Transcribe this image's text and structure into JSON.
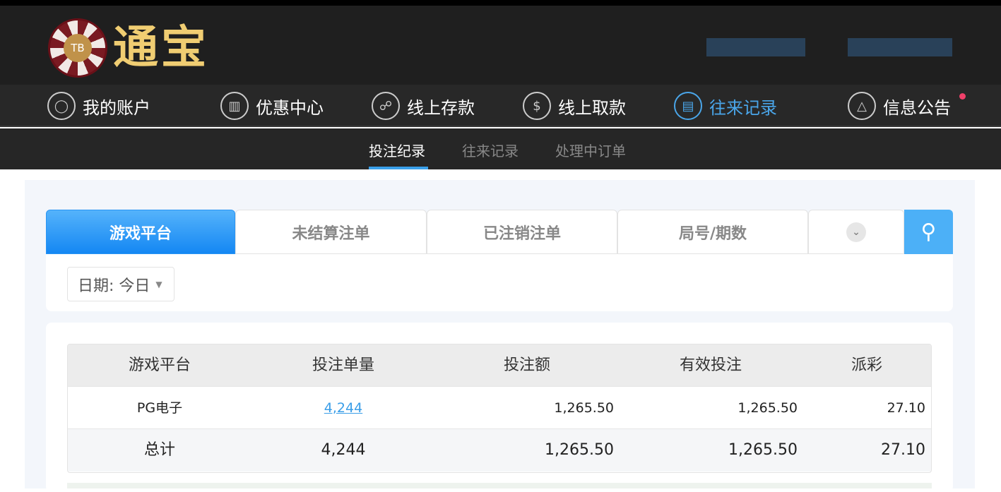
{
  "brand": {
    "logo_text": "通宝",
    "chip_text": "TB"
  },
  "nav": {
    "items": [
      {
        "label": "我的账户",
        "icon": "user-icon"
      },
      {
        "label": "优惠中心",
        "icon": "gift-icon"
      },
      {
        "label": "线上存款",
        "icon": "deposit-icon"
      },
      {
        "label": "线上取款",
        "icon": "withdraw-icon"
      },
      {
        "label": "往来记录",
        "icon": "records-icon",
        "active": true
      },
      {
        "label": "信息公告",
        "icon": "bell-icon"
      }
    ]
  },
  "subnav": {
    "items": [
      "投注纪录",
      "往来记录",
      "处理中订单"
    ],
    "active": 0
  },
  "tabs": {
    "items": [
      "游戏平台",
      "未结算注单",
      "已注销注单",
      "局号/期数"
    ],
    "active": 0
  },
  "filter": {
    "date_label": "日期: 今日"
  },
  "table": {
    "headers": [
      "游戏平台",
      "投注单量",
      "投注额",
      "有效投注",
      "派彩"
    ],
    "rows": [
      {
        "platform": "PG电子",
        "count": "4,244",
        "bet": "1,265.50",
        "valid": "1,265.50",
        "payout": "27.10"
      }
    ],
    "total": {
      "label": "总计",
      "count": "4,244",
      "bet": "1,265.50",
      "valid": "1,265.50",
      "payout": "27.10"
    }
  },
  "colors": {
    "accent": "#1487f3",
    "active_nav": "#4aa6ea",
    "header_bg": "#1f1f1f",
    "notification": "#f0406a"
  }
}
